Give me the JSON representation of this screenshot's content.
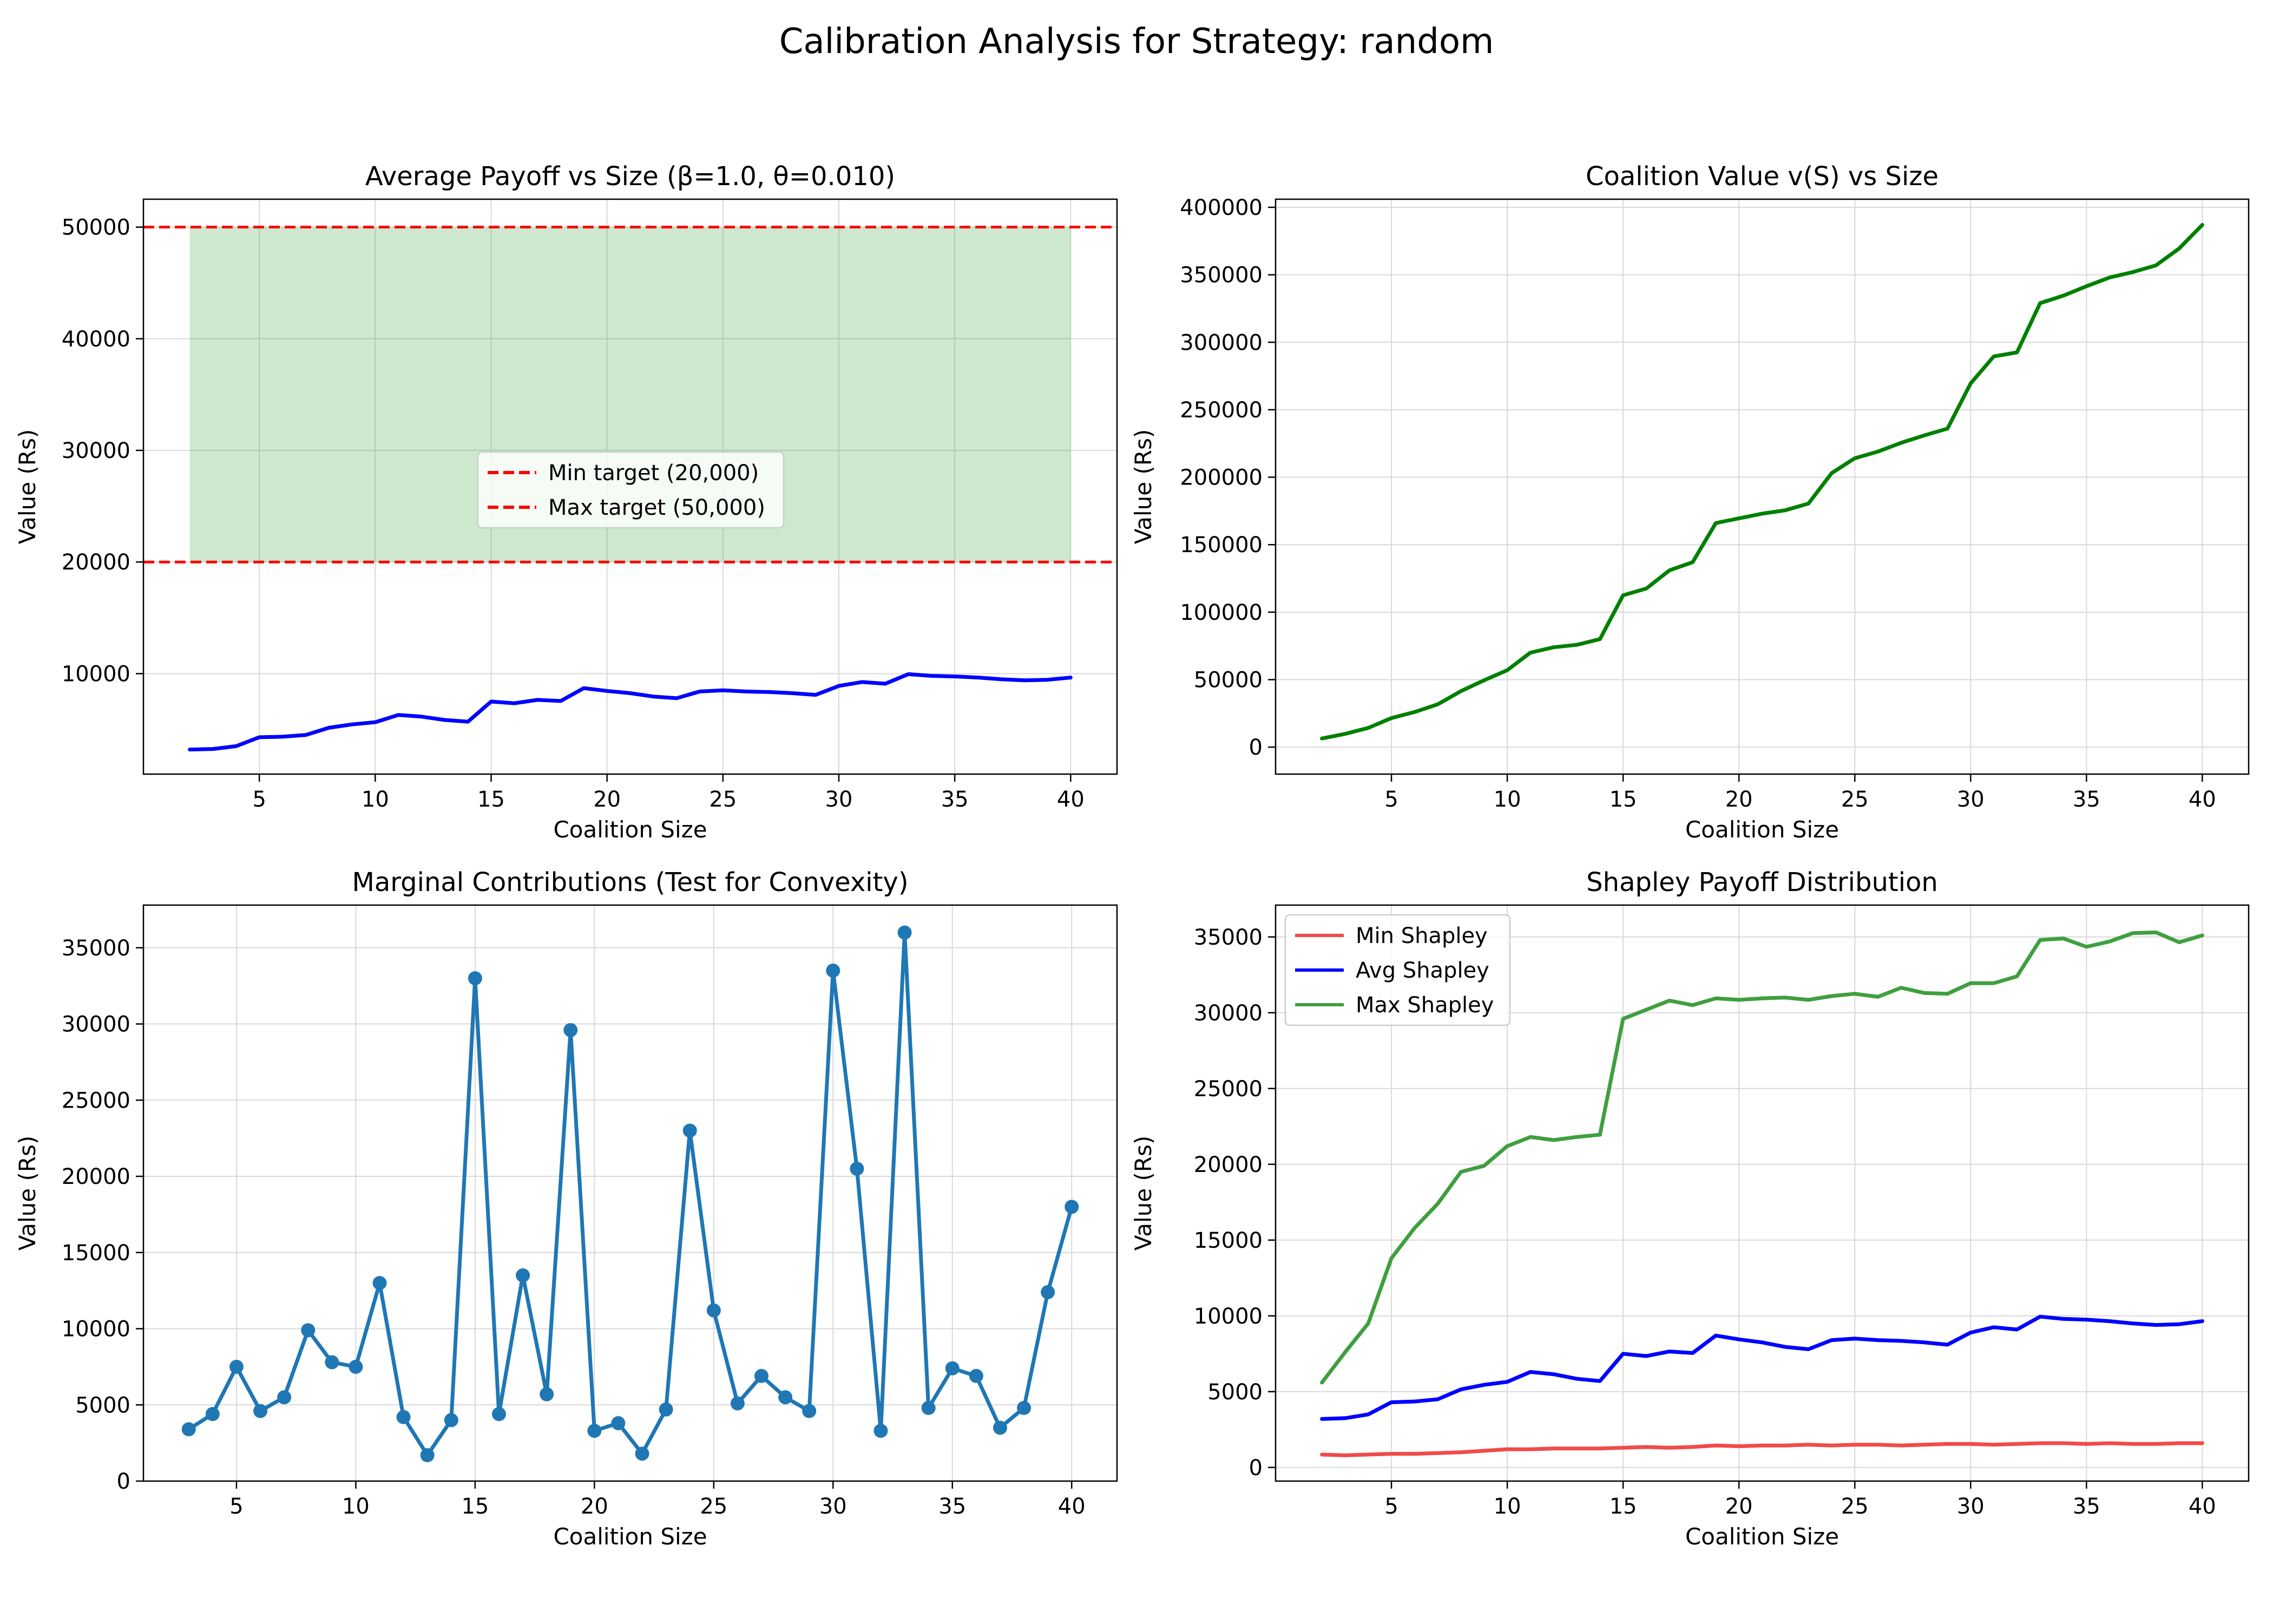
{
  "figure": {
    "title": "Calibration Analysis for Strategy: random"
  },
  "chart_data": [
    {
      "type": "line",
      "title": "Average Payoff vs Size (β=1.0, θ=0.010)",
      "xlabel": "Coalition Size",
      "ylabel": "Value (Rs)",
      "xlim": [
        0,
        42
      ],
      "ylim": [
        1000,
        52500
      ],
      "xticks": [
        5,
        10,
        15,
        20,
        25,
        30,
        35,
        40
      ],
      "yticks": [
        10000,
        20000,
        30000,
        40000,
        50000
      ],
      "grid": true,
      "legend": {
        "placement": "center",
        "entries": [
          "Min target (20,000)",
          "Max target (50,000)"
        ]
      },
      "shaded_band": {
        "x": [
          2,
          40
        ],
        "y": [
          20000,
          50000
        ],
        "color": "#2ca02c"
      },
      "hlines": [
        {
          "name": "Min target (20,000)",
          "y": 20000,
          "color": "#ff0000",
          "style": "dashed"
        },
        {
          "name": "Max target (50,000)",
          "y": 50000,
          "color": "#ff0000",
          "style": "dashed"
        }
      ],
      "series": [
        {
          "color": "#0000ff",
          "x": [
            2,
            3,
            4,
            5,
            6,
            7,
            8,
            9,
            10,
            11,
            12,
            13,
            14,
            15,
            16,
            17,
            18,
            19,
            20,
            21,
            22,
            23,
            24,
            25,
            26,
            27,
            28,
            29,
            30,
            31,
            32,
            33,
            34,
            35,
            36,
            37,
            38,
            39,
            40
          ],
          "values": [
            3200,
            3250,
            3500,
            4300,
            4350,
            4500,
            5150,
            5450,
            5650,
            6300,
            6150,
            5850,
            5700,
            7500,
            7350,
            7650,
            7550,
            8700,
            8450,
            8250,
            7950,
            7800,
            8400,
            8500,
            8400,
            8350,
            8250,
            8100,
            8900,
            9250,
            9100,
            9950,
            9800,
            9750,
            9650,
            9500,
            9400,
            9450,
            9650
          ]
        }
      ]
    },
    {
      "type": "line",
      "title": "Coalition Value v(S) vs Size",
      "xlabel": "Coalition Size",
      "ylabel": "Value (Rs)",
      "xlim": [
        0,
        42
      ],
      "ylim": [
        -20000,
        406000
      ],
      "xticks": [
        5,
        10,
        15,
        20,
        25,
        30,
        35,
        40
      ],
      "yticks": [
        0,
        50000,
        100000,
        150000,
        200000,
        250000,
        300000,
        350000,
        400000
      ],
      "grid": true,
      "series": [
        {
          "color": "#008000",
          "x": [
            2,
            3,
            4,
            5,
            6,
            7,
            8,
            9,
            10,
            11,
            12,
            13,
            14,
            15,
            16,
            17,
            18,
            19,
            20,
            21,
            22,
            23,
            24,
            25,
            26,
            27,
            28,
            29,
            30,
            31,
            32,
            33,
            34,
            35,
            36,
            37,
            38,
            39,
            40
          ],
          "values": [
            6400,
            9800,
            14200,
            21500,
            26000,
            31700,
            41500,
            49500,
            57000,
            70000,
            74000,
            75800,
            80000,
            112500,
            117500,
            131000,
            137000,
            166000,
            169500,
            173000,
            175500,
            180500,
            203000,
            214000,
            219000,
            225500,
            231000,
            236000,
            269500,
            289500,
            292500,
            329000,
            334500,
            341500,
            348000,
            352000,
            357000,
            369500,
            387000
          ]
        }
      ]
    },
    {
      "type": "line",
      "title": "Marginal Contributions (Test for Convexity)",
      "xlabel": "Coalition Size",
      "ylabel": "Value (Rs)",
      "xlim": [
        1.1,
        41.9
      ],
      "ylim": [
        0,
        37800
      ],
      "xticks": [
        5,
        10,
        15,
        20,
        25,
        30,
        35,
        40
      ],
      "yticks": [
        0,
        5000,
        10000,
        15000,
        20000,
        25000,
        30000,
        35000
      ],
      "grid": true,
      "markers": true,
      "series": [
        {
          "color": "#1f77b4",
          "x": [
            3,
            4,
            5,
            6,
            7,
            8,
            9,
            10,
            11,
            12,
            13,
            14,
            15,
            16,
            17,
            18,
            19,
            20,
            21,
            22,
            23,
            24,
            25,
            26,
            27,
            28,
            29,
            30,
            31,
            32,
            33,
            34,
            35,
            36,
            37,
            38,
            39,
            40
          ],
          "values": [
            3400,
            4400,
            7500,
            4600,
            5500,
            9900,
            7800,
            7500,
            13000,
            4200,
            1700,
            4000,
            33000,
            4400,
            13500,
            5700,
            29600,
            3300,
            3800,
            1800,
            4700,
            23000,
            11200,
            5100,
            6900,
            5500,
            4600,
            33500,
            20500,
            3300,
            36000,
            4800,
            7400,
            6900,
            3500,
            4800,
            12400,
            18000
          ]
        }
      ]
    },
    {
      "type": "line",
      "title": "Shapley Payoff Distribution",
      "xlabel": "Coalition Size",
      "ylabel": "Value (Rs)",
      "xlim": [
        0,
        42
      ],
      "ylim": [
        -900,
        37100
      ],
      "xticks": [
        5,
        10,
        15,
        20,
        25,
        30,
        35,
        40
      ],
      "yticks": [
        0,
        5000,
        10000,
        15000,
        20000,
        25000,
        30000,
        35000
      ],
      "grid": true,
      "legend": {
        "placement": "upper-left",
        "entries": [
          "Min Shapley",
          "Avg Shapley",
          "Max Shapley"
        ]
      },
      "series": [
        {
          "name": "Min Shapley",
          "color": "#f24a4a",
          "x": [
            2,
            3,
            4,
            5,
            6,
            7,
            8,
            9,
            10,
            11,
            12,
            13,
            14,
            15,
            16,
            17,
            18,
            19,
            20,
            21,
            22,
            23,
            24,
            25,
            26,
            27,
            28,
            29,
            30,
            31,
            32,
            33,
            34,
            35,
            36,
            37,
            38,
            39,
            40
          ],
          "values": [
            850,
            800,
            850,
            900,
            900,
            950,
            1000,
            1100,
            1200,
            1200,
            1250,
            1250,
            1250,
            1300,
            1350,
            1300,
            1350,
            1450,
            1400,
            1450,
            1450,
            1500,
            1450,
            1500,
            1500,
            1450,
            1500,
            1550,
            1550,
            1500,
            1550,
            1600,
            1600,
            1550,
            1600,
            1550,
            1550,
            1600,
            1600
          ]
        },
        {
          "name": "Avg Shapley",
          "color": "#0000ff",
          "x": [
            2,
            3,
            4,
            5,
            6,
            7,
            8,
            9,
            10,
            11,
            12,
            13,
            14,
            15,
            16,
            17,
            18,
            19,
            20,
            21,
            22,
            23,
            24,
            25,
            26,
            27,
            28,
            29,
            30,
            31,
            32,
            33,
            34,
            35,
            36,
            37,
            38,
            39,
            40
          ],
          "values": [
            3200,
            3250,
            3500,
            4300,
            4350,
            4500,
            5150,
            5450,
            5650,
            6300,
            6150,
            5850,
            5700,
            7500,
            7350,
            7650,
            7550,
            8700,
            8450,
            8250,
            7950,
            7800,
            8400,
            8500,
            8400,
            8350,
            8250,
            8100,
            8900,
            9250,
            9100,
            9950,
            9800,
            9750,
            9650,
            9500,
            9400,
            9450,
            9650
          ]
        },
        {
          "name": "Max Shapley",
          "color": "#3f9f3f",
          "x": [
            2,
            3,
            4,
            5,
            6,
            7,
            8,
            9,
            10,
            11,
            12,
            13,
            14,
            15,
            16,
            17,
            18,
            19,
            20,
            21,
            22,
            23,
            24,
            25,
            26,
            27,
            28,
            29,
            30,
            31,
            32,
            33,
            34,
            35,
            36,
            37,
            38,
            39,
            40
          ],
          "values": [
            5600,
            7600,
            9500,
            13800,
            15800,
            17400,
            19500,
            19900,
            21200,
            21800,
            21600,
            21800,
            21950,
            29600,
            30200,
            30800,
            30500,
            30950,
            30850,
            30950,
            31000,
            30850,
            31100,
            31250,
            31050,
            31650,
            31300,
            31250,
            31950,
            31950,
            32400,
            34800,
            34900,
            34350,
            34700,
            35250,
            35300,
            34650,
            35100
          ]
        }
      ]
    }
  ]
}
